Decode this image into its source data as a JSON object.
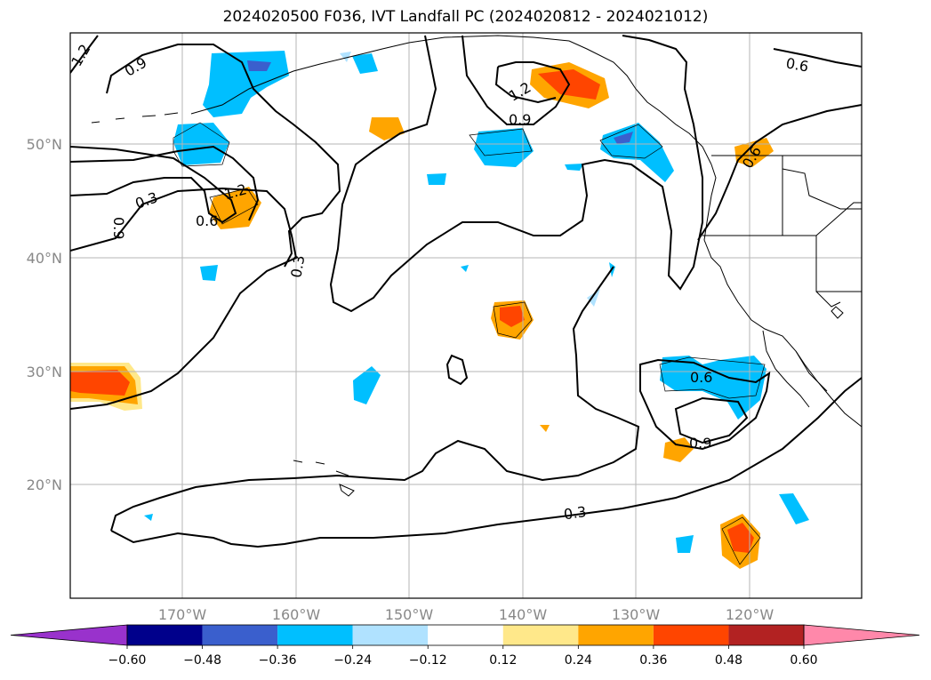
{
  "title": "2024020500 F036, IVT Landfall PC (2024020812 - 2024021012)",
  "lon_ticks": [
    "170°W",
    "160°W",
    "150°W",
    "140°W",
    "130°W",
    "120°W"
  ],
  "lat_ticks": [
    "50°N",
    "40°N",
    "30°N",
    "20°N"
  ],
  "contour_labels": [
    "1.2",
    "0.9",
    "1.2",
    "0.9",
    "0.6",
    "0.3",
    "0.9",
    "1.2",
    "0.6",
    "0.3",
    "0.6",
    "0.9",
    "0.3",
    "0.6"
  ],
  "colorbar": {
    "ticks": [
      "−0.60",
      "−0.48",
      "−0.36",
      "−0.24",
      "−0.12",
      "0.12",
      "0.24",
      "0.36",
      "0.48",
      "0.60"
    ],
    "colors": [
      "#9932cc",
      "#00008b",
      "#3a5fcd",
      "#00bfff",
      "#b0e2ff",
      "#ffffff",
      "#ffe88a",
      "#ffa500",
      "#ff4500",
      "#b22222",
      "#ff88aa"
    ]
  },
  "colors": {
    "contour": "#000000",
    "coast": "#000000",
    "grid": "#b5b5b5"
  }
}
